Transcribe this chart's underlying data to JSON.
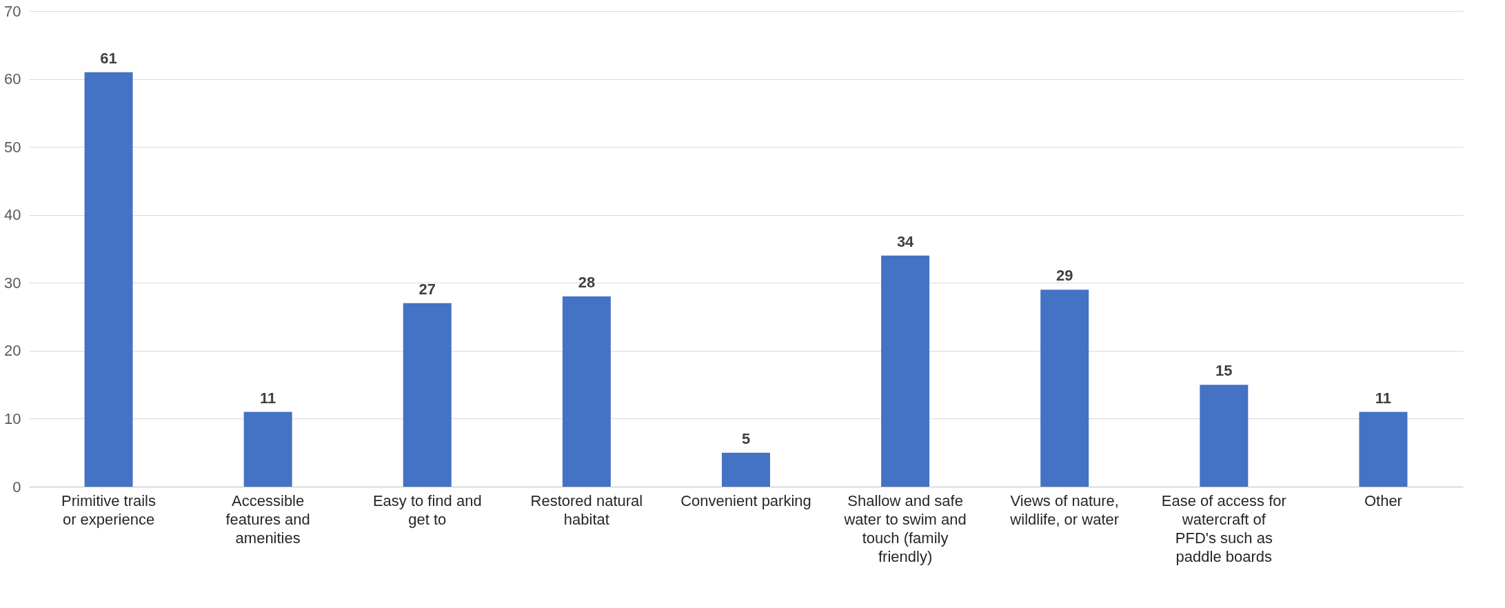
{
  "chart_data": {
    "type": "bar",
    "categories": [
      "Primitive trails or experience",
      "Accessible features and amenities",
      "Easy to find and get to",
      "Restored natural habitat",
      "Convenient parking",
      "Shallow and safe water to swim and touch (family friendly)",
      "Views of nature, wildlife, or water",
      "Ease of access for watercraft of PFD's such as paddle boards",
      "Other"
    ],
    "values": [
      61,
      11,
      27,
      28,
      5,
      34,
      29,
      15,
      11
    ],
    "color": "#4472c4",
    "ylim": [
      0,
      70
    ],
    "yticks": [
      0,
      10,
      20,
      30,
      40,
      50,
      60,
      70
    ],
    "grid": "y",
    "data_labels": true
  }
}
